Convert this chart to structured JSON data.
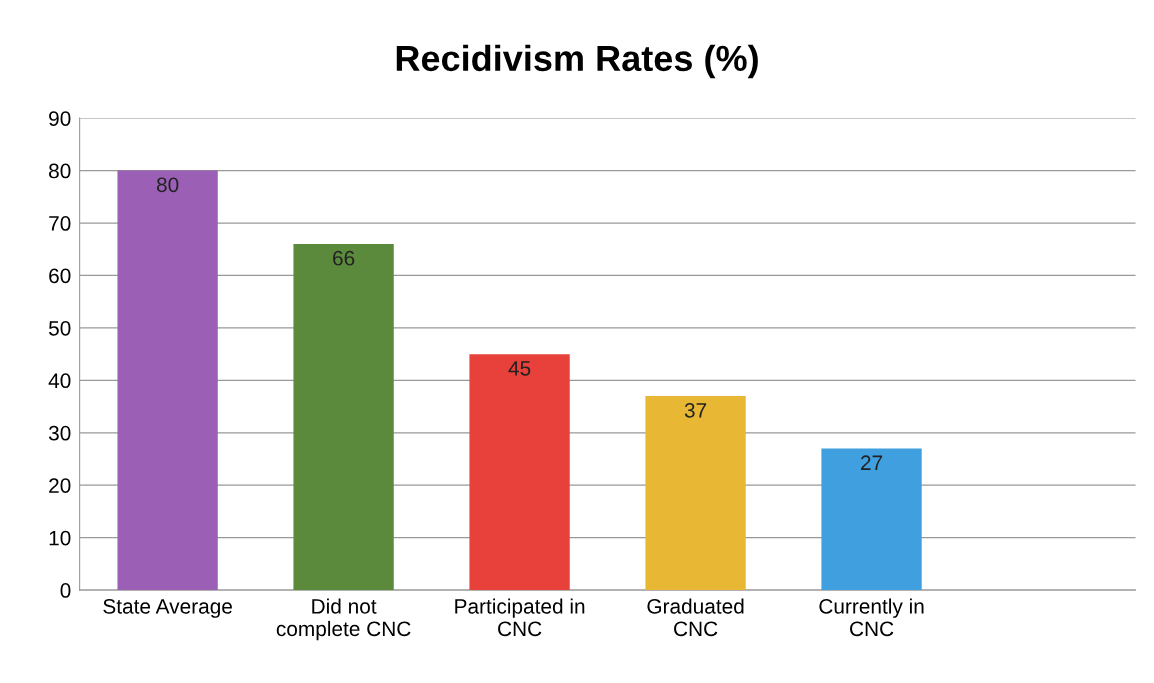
{
  "chart_data": {
    "type": "bar",
    "title": "Recidivism Rates (%)",
    "categories": [
      "State Average",
      "Did not\ncomplete CNC",
      "Participated in\nCNC",
      "Graduated\nCNC",
      "Currently in\nCNC",
      null
    ],
    "values": [
      80,
      66,
      45,
      37,
      27,
      null
    ],
    "colors": [
      "#9b5fb5",
      "#5b8a3c",
      "#e8403a",
      "#e8b835",
      "#3f9fdf",
      "#888888"
    ],
    "ylim": [
      0,
      90
    ],
    "yticks": [
      0,
      10,
      20,
      30,
      40,
      50,
      60,
      70,
      80,
      90
    ],
    "grid": "y",
    "data_labels": true
  }
}
